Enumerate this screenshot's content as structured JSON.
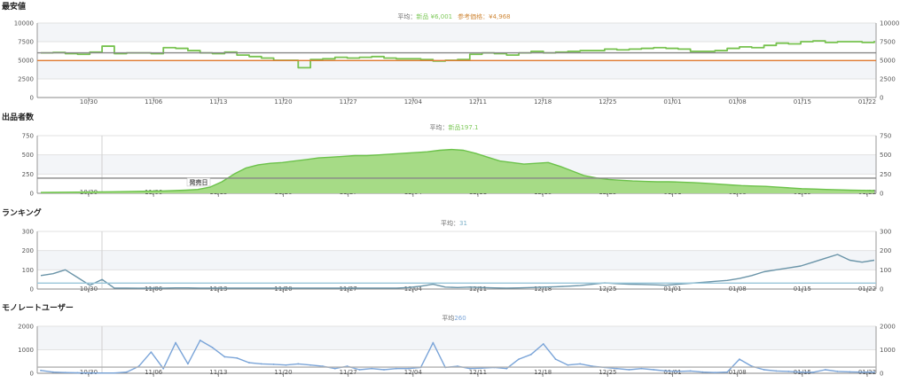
{
  "chart_data": [
    {
      "type": "line",
      "title": "最安値",
      "avg_label": "平均：",
      "avg_entries": [
        {
          "text": "新品 ¥6,001",
          "color": "#7ec95a"
        },
        {
          "text": "参考価格：¥4,968",
          "color": "#d08a3c"
        }
      ],
      "x_ticks": [
        "10/30",
        "11/06",
        "11/13",
        "11/20",
        "11/27",
        "12/04",
        "12/11",
        "12/18",
        "12/25",
        "01/01",
        "01/08",
        "01/15",
        "01/22"
      ],
      "y_ticks": [
        "0",
        "2500",
        "5000",
        "7500",
        "10000"
      ],
      "ylim": [
        0,
        10000
      ],
      "grid": true,
      "series": [
        {
          "color": "#77c24f",
          "values": [
            6000,
            6050,
            5900,
            5800,
            6100,
            6900,
            5900,
            6000,
            6000,
            5900,
            6700,
            6600,
            6300,
            6000,
            5900,
            6100,
            5700,
            5500,
            5300,
            5000,
            5000,
            4000,
            5100,
            5200,
            5400,
            5300,
            5400,
            5500,
            5300,
            5200,
            5200,
            5100,
            4900,
            5000,
            5100,
            5800,
            6000,
            5900,
            5700,
            6000,
            6200,
            6000,
            6100,
            6200,
            6300,
            6300,
            6500,
            6400,
            6500,
            6600,
            6700,
            6600,
            6500,
            6200,
            6200,
            6300,
            6600,
            6800,
            6700,
            7000,
            7300,
            7200,
            7500,
            7600,
            7400,
            7500,
            7500,
            7400,
            7600
          ]
        },
        {
          "color": "#888888",
          "values": [
            6001
          ]
        },
        {
          "color": "#e07a30",
          "values": [
            4968
          ]
        }
      ]
    },
    {
      "type": "area",
      "title": "出品者数",
      "avg_label": "平均：",
      "avg_entries": [
        {
          "text": "新品197.1",
          "color": "#7ec95a"
        }
      ],
      "annotations": [
        "発売日"
      ],
      "x_ticks": [
        "10/30",
        "11/06",
        "11/13",
        "11/20",
        "11/27",
        "12/04",
        "12/11",
        "12/18",
        "12/25",
        "01/01",
        "01/08",
        "01/15",
        "01/22"
      ],
      "y_ticks": [
        "0",
        "250",
        "500",
        "750"
      ],
      "ylim": [
        0,
        750
      ],
      "grid": true,
      "series": [
        {
          "color": "#6cc24a",
          "values": [
            10,
            12,
            14,
            15,
            16,
            18,
            20,
            22,
            25,
            28,
            30,
            35,
            40,
            50,
            80,
            150,
            250,
            330,
            370,
            390,
            400,
            420,
            440,
            460,
            470,
            480,
            490,
            490,
            500,
            510,
            520,
            530,
            540,
            560,
            570,
            560,
            520,
            470,
            420,
            400,
            380,
            390,
            400,
            350,
            290,
            230,
            200,
            180,
            170,
            160,
            155,
            150,
            150,
            145,
            140,
            130,
            120,
            110,
            100,
            95,
            90,
            80,
            70,
            60,
            55,
            50,
            45,
            40,
            38,
            35
          ]
        },
        {
          "color": "#888888",
          "values": [
            197.1
          ]
        }
      ]
    },
    {
      "type": "line",
      "title": "ランキング",
      "avg_label": "平均：",
      "avg_entries": [
        {
          "text": "31",
          "color": "#7ab0c8"
        }
      ],
      "x_ticks": [
        "10/30",
        "11/06",
        "11/13",
        "11/20",
        "11/27",
        "12/04",
        "12/11",
        "12/18",
        "12/25",
        "01/01",
        "01/08",
        "01/15",
        "01/22"
      ],
      "y_ticks": [
        "0",
        "100",
        "200",
        "300"
      ],
      "ylim": [
        0,
        300
      ],
      "grid": true,
      "series": [
        {
          "color": "#6a94a8",
          "values": [
            70,
            80,
            100,
            60,
            20,
            50,
            5,
            5,
            4,
            5,
            5,
            6,
            6,
            5,
            5,
            5,
            5,
            5,
            5,
            5,
            5,
            5,
            5,
            5,
            5,
            5,
            5,
            5,
            5,
            5,
            8,
            15,
            25,
            10,
            8,
            10,
            8,
            6,
            5,
            6,
            8,
            10,
            12,
            15,
            18,
            25,
            32,
            28,
            25,
            24,
            22,
            20,
            25,
            30,
            35,
            40,
            45,
            55,
            70,
            90,
            100,
            110,
            120,
            140,
            160,
            180,
            150,
            140,
            150
          ]
        },
        {
          "color": "#9ac6da",
          "values": [
            31
          ]
        }
      ]
    },
    {
      "type": "line",
      "title": "モノレートユーザー",
      "avg_label": "平均",
      "avg_entries": [
        {
          "text": "260",
          "color": "#7aa4d8"
        }
      ],
      "x_ticks": [
        "10/30",
        "11/06",
        "11/13",
        "11/20",
        "11/27",
        "12/04",
        "12/11",
        "12/18",
        "12/25",
        "01/01",
        "01/08",
        "01/15",
        "01/22"
      ],
      "y_ticks": [
        "0",
        "1000",
        "2000"
      ],
      "ylim": [
        0,
        2000
      ],
      "grid": true,
      "series": [
        {
          "color": "#7aa4d8",
          "values": [
            120,
            50,
            30,
            20,
            10,
            10,
            10,
            50,
            300,
            900,
            200,
            1300,
            400,
            1400,
            1100,
            700,
            650,
            450,
            400,
            380,
            350,
            400,
            350,
            300,
            200,
            300,
            150,
            200,
            150,
            200,
            200,
            250,
            1300,
            250,
            300,
            200,
            220,
            250,
            200,
            600,
            800,
            1250,
            600,
            350,
            400,
            300,
            250,
            200,
            150,
            200,
            150,
            100,
            80,
            100,
            50,
            30,
            50,
            600,
            300,
            150,
            100,
            80,
            50,
            40,
            150,
            80,
            60,
            50,
            50
          ]
        },
        {
          "color": "#b0b0b0",
          "values": [
            260
          ]
        }
      ]
    }
  ]
}
